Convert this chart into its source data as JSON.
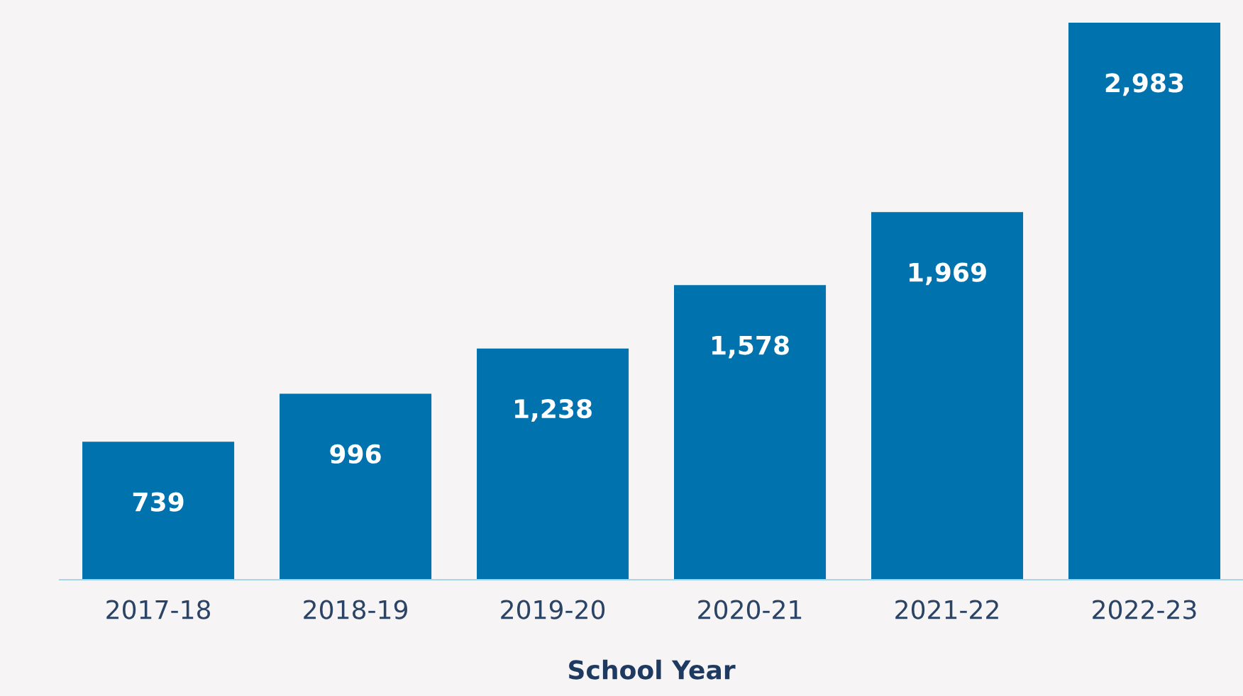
{
  "chart_data": {
    "type": "bar",
    "xlabel": "School Year",
    "categories": [
      "2017-18",
      "2018-19",
      "2019-20",
      "2020-21",
      "2021-22",
      "2022-23"
    ],
    "values": [
      739,
      996,
      1238,
      1578,
      1969,
      2983
    ],
    "value_labels": [
      "739",
      "996",
      "1,238",
      "1,578",
      "1,969",
      "2,983"
    ],
    "color": "#0072ae",
    "grid": false,
    "legend": false
  }
}
